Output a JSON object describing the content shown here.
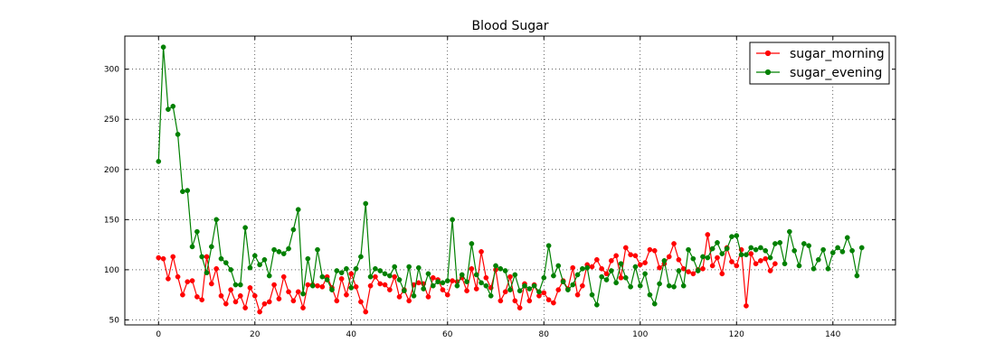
{
  "chart_data": {
    "type": "line",
    "title": "Blood Sugar",
    "xlabel": "",
    "ylabel": "",
    "xlim": [
      -7,
      153
    ],
    "ylim": [
      45,
      333
    ],
    "xticks": [
      0,
      20,
      40,
      60,
      80,
      100,
      120,
      140
    ],
    "yticks": [
      50,
      100,
      150,
      200,
      250,
      300
    ],
    "grid": true,
    "legend_position": "top-right",
    "series": [
      {
        "name": "sugar_morning",
        "color": "#ff0000",
        "x_start": 0,
        "values": [
          112,
          111,
          91,
          113,
          93,
          75,
          88,
          89,
          73,
          70,
          113,
          86,
          101,
          74,
          66,
          80,
          68,
          74,
          62,
          82,
          74,
          58,
          66,
          68,
          85,
          71,
          93,
          78,
          69,
          78,
          62,
          85,
          85,
          84,
          83,
          93,
          82,
          69,
          91,
          75,
          96,
          83,
          68,
          58,
          84,
          93,
          86,
          85,
          80,
          93,
          73,
          80,
          69,
          85,
          87,
          86,
          73,
          92,
          90,
          80,
          75,
          89,
          88,
          92,
          79,
          101,
          81,
          118,
          92,
          82,
          100,
          69,
          78,
          93,
          69,
          62,
          86,
          69,
          85,
          74,
          77,
          70,
          67,
          80,
          89,
          81,
          102,
          75,
          84,
          105,
          103,
          110,
          101,
          96,
          109,
          114,
          92,
          122,
          115,
          114,
          105,
          107,
          120,
          119,
          102,
          106,
          113,
          126,
          110,
          101,
          98,
          96,
          100,
          101,
          135,
          104,
          112,
          96,
          122,
          108,
          104,
          120,
          64,
          116,
          106,
          109,
          111,
          99,
          106
        ]
      },
      {
        "name": "sugar_evening",
        "color": "#008000",
        "x_start": 0,
        "values": [
          208,
          322,
          260,
          263,
          235,
          178,
          179,
          123,
          138,
          113,
          97,
          123,
          150,
          111,
          107,
          100,
          85,
          85,
          142,
          102,
          114,
          105,
          110,
          94,
          120,
          118,
          116,
          121,
          140,
          160,
          76,
          111,
          84,
          120,
          93,
          90,
          80,
          99,
          97,
          101,
          82,
          101,
          113,
          166,
          93,
          101,
          99,
          96,
          94,
          103,
          90,
          79,
          103,
          74,
          102,
          81,
          96,
          84,
          88,
          87,
          89,
          150,
          84,
          95,
          88,
          126,
          95,
          87,
          84,
          74,
          104,
          101,
          99,
          80,
          95,
          79,
          84,
          81,
          84,
          78,
          92,
          124,
          94,
          104,
          88,
          80,
          85,
          95,
          101,
          102,
          75,
          65,
          93,
          90,
          99,
          87,
          106,
          92,
          83,
          103,
          84,
          96,
          75,
          66,
          86,
          109,
          84,
          83,
          99,
          84,
          120,
          111,
          99,
          113,
          112,
          121,
          127,
          116,
          121,
          133,
          134,
          115,
          115,
          122,
          120,
          122,
          119,
          112,
          126,
          127,
          106,
          138,
          119,
          104,
          126,
          124,
          101,
          110,
          120,
          101,
          117,
          122,
          118,
          132,
          119,
          94,
          122
        ]
      }
    ]
  }
}
